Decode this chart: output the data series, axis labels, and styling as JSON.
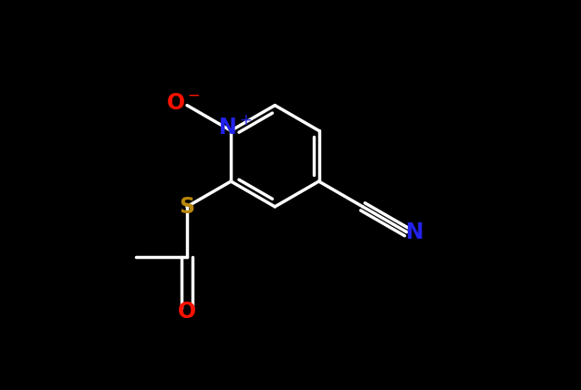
{
  "background": "#000000",
  "bond_color": "#ffffff",
  "bond_lw": 2.5,
  "figsize": [
    6.37,
    4.28
  ],
  "dpi": 100,
  "atoms": {
    "N_plus": {
      "color": "#2222ee"
    },
    "O_minus": {
      "color": "#ff1100"
    },
    "S": {
      "color": "#b8860b"
    },
    "O_carbonyl": {
      "color": "#ff1100"
    },
    "N_cyano": {
      "color": "#2222ee"
    }
  },
  "label_fontsize": 17
}
